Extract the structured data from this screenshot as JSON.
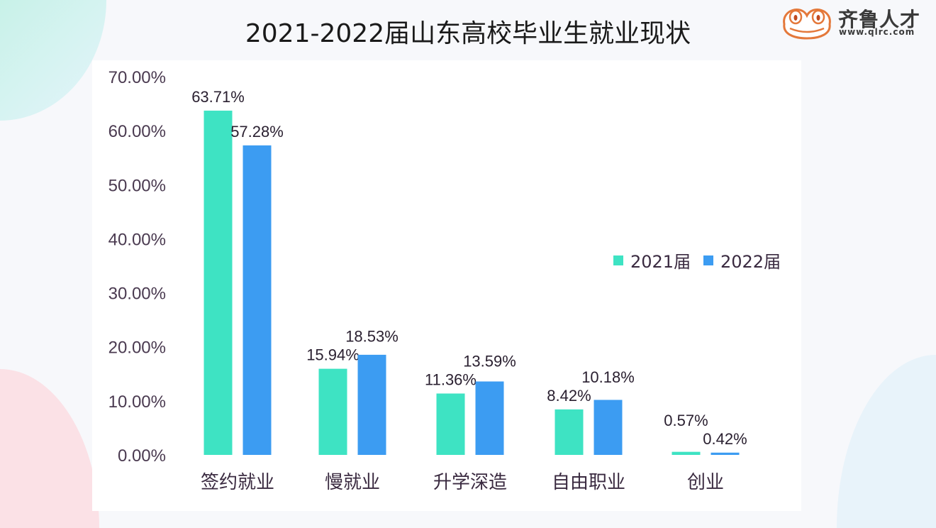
{
  "logo": {
    "name": "齐鲁人才",
    "url": "www.qlrc.com"
  },
  "chart_data": {
    "type": "bar",
    "title": "2021-2022届山东高校毕业生就业现状",
    "xlabel": "",
    "ylabel": "",
    "categories": [
      "签约就业",
      "慢就业",
      "升学深造",
      "自由职业",
      "创业"
    ],
    "series": [
      {
        "name": "2021届",
        "color": "#3ee3c3",
        "values": [
          63.71,
          15.94,
          11.36,
          8.42,
          0.57
        ],
        "labels": [
          "63.71%",
          "15.94%",
          "11.36%",
          "8.42%",
          "0.57%"
        ]
      },
      {
        "name": "2022届",
        "color": "#3c9cf2",
        "values": [
          57.28,
          18.53,
          13.59,
          10.18,
          0.42
        ],
        "labels": [
          "57.28%",
          "18.53%",
          "13.59%",
          "10.18%",
          "0.42%"
        ]
      }
    ],
    "ylim": [
      0,
      70
    ],
    "yticks": [
      "0.00%",
      "10.00%",
      "20.00%",
      "30.00%",
      "40.00%",
      "50.00%",
      "60.00%",
      "70.00%"
    ],
    "grid": false,
    "legend_position": "right"
  }
}
